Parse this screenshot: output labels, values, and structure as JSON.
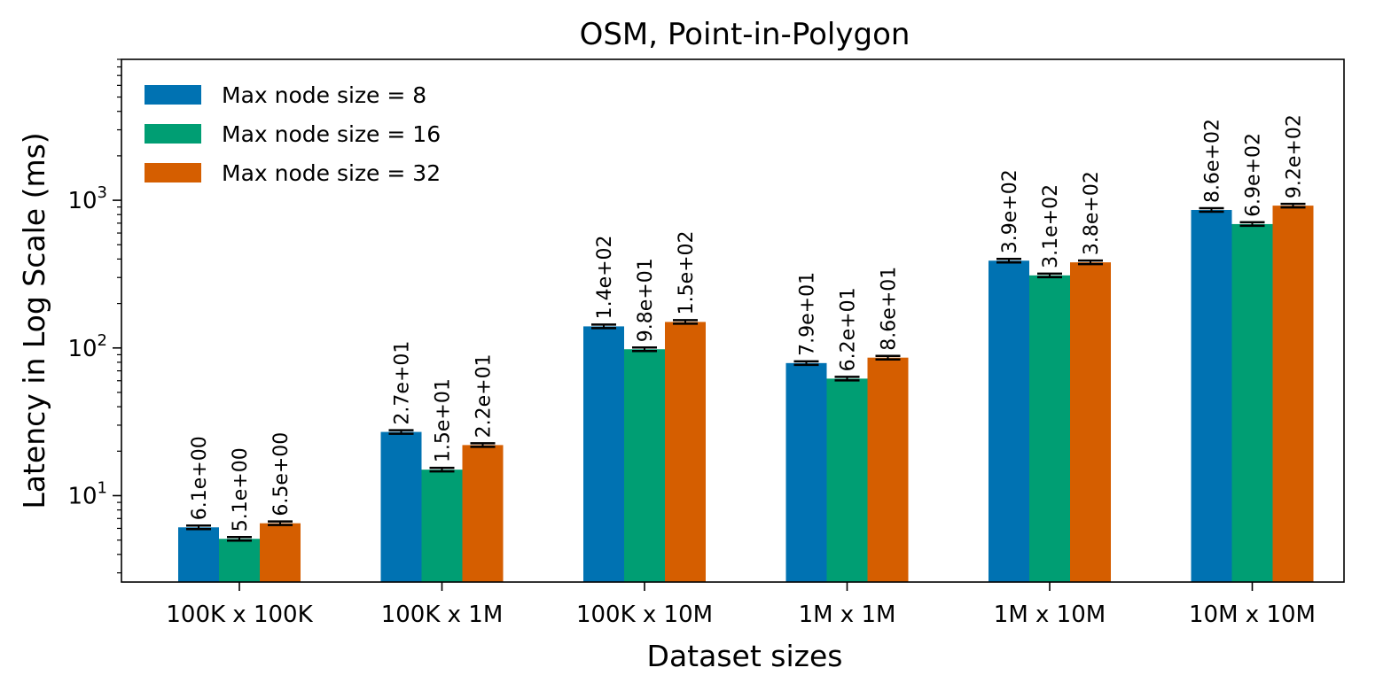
{
  "chart_data": {
    "type": "bar",
    "title": "OSM, Point-in-Polygon",
    "xlabel": "Dataset sizes",
    "ylabel": "Latency in Log Scale (ms)",
    "yscale": "log",
    "ylim": [
      2.6,
      9000
    ],
    "grid": false,
    "legend_position": "top-left",
    "categories": [
      "100K x 100K",
      "100K x 1M",
      "100K x 10M",
      "1M x 1M",
      "1M x 10M",
      "10M x 10M"
    ],
    "y_ticks": [
      {
        "value": 10,
        "base": "10",
        "exp": "1"
      },
      {
        "value": 100,
        "base": "10",
        "exp": "2"
      },
      {
        "value": 1000,
        "base": "10",
        "exp": "3"
      }
    ],
    "series": [
      {
        "name": "Max node size = 8",
        "color": "#0072b2",
        "values": [
          6.1,
          27,
          140,
          79,
          390,
          860
        ],
        "labels": [
          "6.1e+00",
          "2.7e+01",
          "1.4e+02",
          "7.9e+01",
          "3.9e+02",
          "8.6e+02"
        ]
      },
      {
        "name": "Max node size = 16",
        "color": "#009e73",
        "values": [
          5.1,
          15,
          98,
          62,
          310,
          690
        ],
        "labels": [
          "5.1e+00",
          "1.5e+01",
          "9.8e+01",
          "6.2e+01",
          "3.1e+02",
          "6.9e+02"
        ]
      },
      {
        "name": "Max node size = 32",
        "color": "#d55e00",
        "values": [
          6.5,
          22,
          150,
          86,
          380,
          920
        ],
        "labels": [
          "6.5e+00",
          "2.2e+01",
          "1.5e+02",
          "8.6e+01",
          "3.8e+02",
          "9.2e+02"
        ]
      }
    ]
  }
}
